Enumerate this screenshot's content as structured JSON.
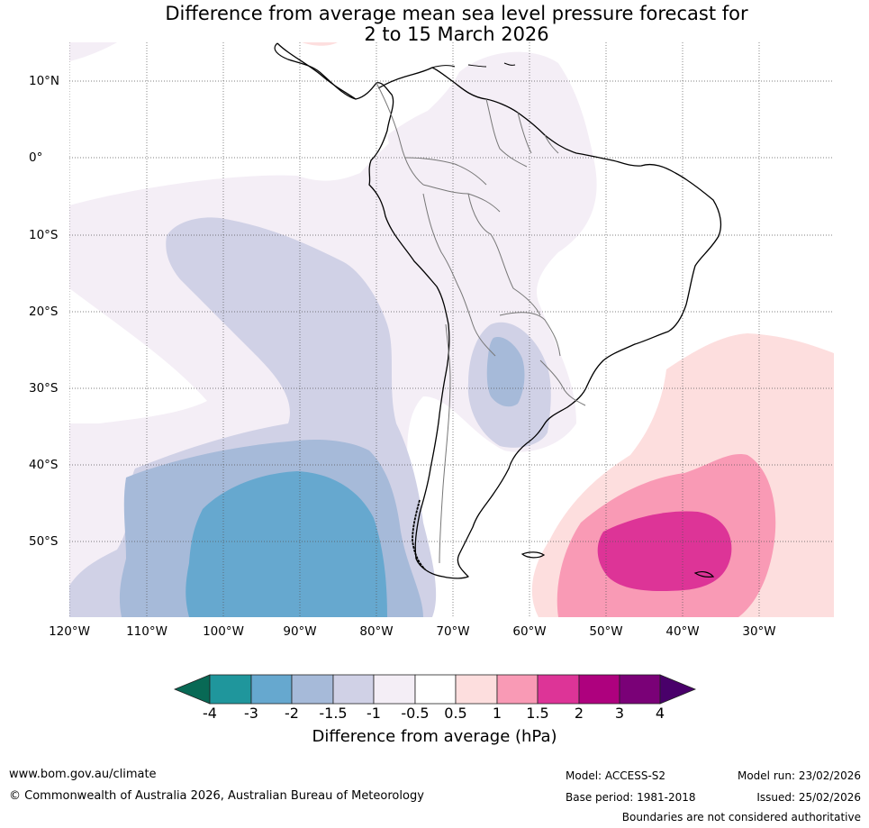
{
  "title": {
    "line1": "Difference from average mean sea level pressure forecast for",
    "line2": "2 to 15 March 2026"
  },
  "map": {
    "region": "South America and adjacent oceans",
    "lat_labels": [
      "10°N",
      "0°",
      "10°S",
      "20°S",
      "30°S",
      "40°S",
      "50°S"
    ],
    "lon_labels": [
      "120°W",
      "110°W",
      "100°W",
      "90°W",
      "80°W",
      "70°W",
      "60°W",
      "50°W",
      "40°W",
      "30°W"
    ],
    "colors": {
      "neg_4_plus": "#086955",
      "neg_4_to_3": "#1f969c",
      "neg_3_to_2": "#66a8cf",
      "neg_2_to_1_5": "#a6bad9",
      "neg_1_5_to_1": "#d0d1e6",
      "neg_1_to_0_5": "#f4eef6",
      "neutral": "#ffffff",
      "pos_0_5_to_1": "#fddede",
      "pos_1_to_1_5": "#f99ab5",
      "pos_1_5_to_2": "#dd3497",
      "pos_2_to_3": "#ae017e",
      "pos_3_to_4": "#7a0177",
      "pos_4_plus": "#49006a"
    }
  },
  "colorbar": {
    "tick_labels": [
      "-4",
      "-3",
      "-2",
      "-1.5",
      "-1",
      "-0.5",
      "0.5",
      "1",
      "1.5",
      "2",
      "3",
      "4"
    ],
    "label": "Difference from average (hPa)"
  },
  "footer": {
    "website": "www.bom.gov.au/climate",
    "copyright": "© Commonwealth of Australia 2026, Australian Bureau of Meteorology",
    "model": "Model: ACCESS-S2",
    "base_period": "Base period: 1981-2018",
    "model_run": "Model run: 23/02/2026",
    "issued": "Issued: 25/02/2026",
    "disclaimer": "Boundaries are not considered authoritative"
  }
}
